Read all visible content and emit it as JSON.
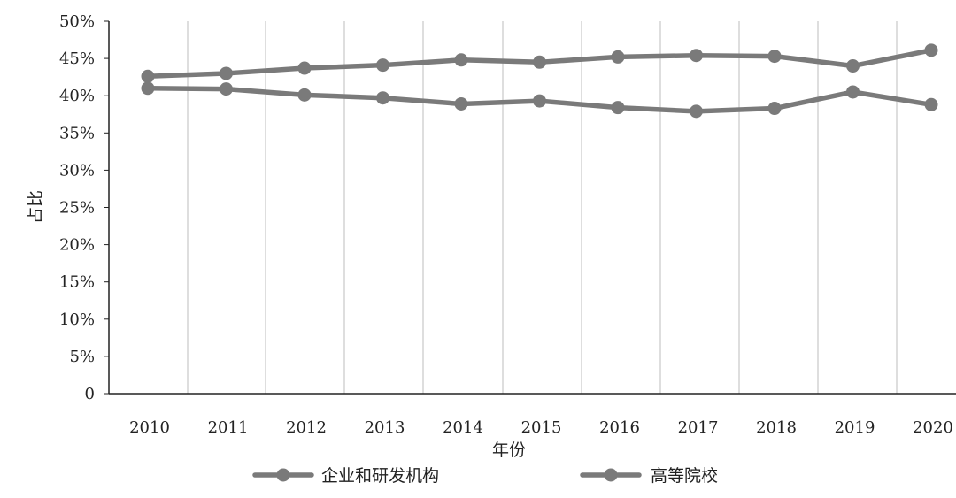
{
  "chart_data": {
    "type": "line",
    "title": "",
    "xlabel": "年份",
    "ylabel": "占比",
    "categories": [
      "2010",
      "2011",
      "2012",
      "2013",
      "2014",
      "2015",
      "2016",
      "2017",
      "2018",
      "2019",
      "2020"
    ],
    "ylim": [
      0,
      50
    ],
    "yticks": [
      "0",
      "5%",
      "10%",
      "15%",
      "20%",
      "25%",
      "30%",
      "35%",
      "40%",
      "45%",
      "50%"
    ],
    "grid": "vertical",
    "legend_position": "bottom",
    "series": [
      {
        "name": "企业和研发机构",
        "values": [
          42.6,
          43.0,
          43.7,
          44.1,
          44.8,
          44.5,
          45.2,
          45.4,
          45.3,
          44.0,
          46.1
        ]
      },
      {
        "name": "高等院校",
        "values": [
          41.0,
          40.9,
          40.1,
          39.7,
          38.9,
          39.3,
          38.4,
          37.9,
          38.3,
          40.5,
          38.8
        ]
      }
    ],
    "colors": {
      "line": "#7a7a7a",
      "grid": "#c8c8c8",
      "axis": "#222222"
    }
  }
}
